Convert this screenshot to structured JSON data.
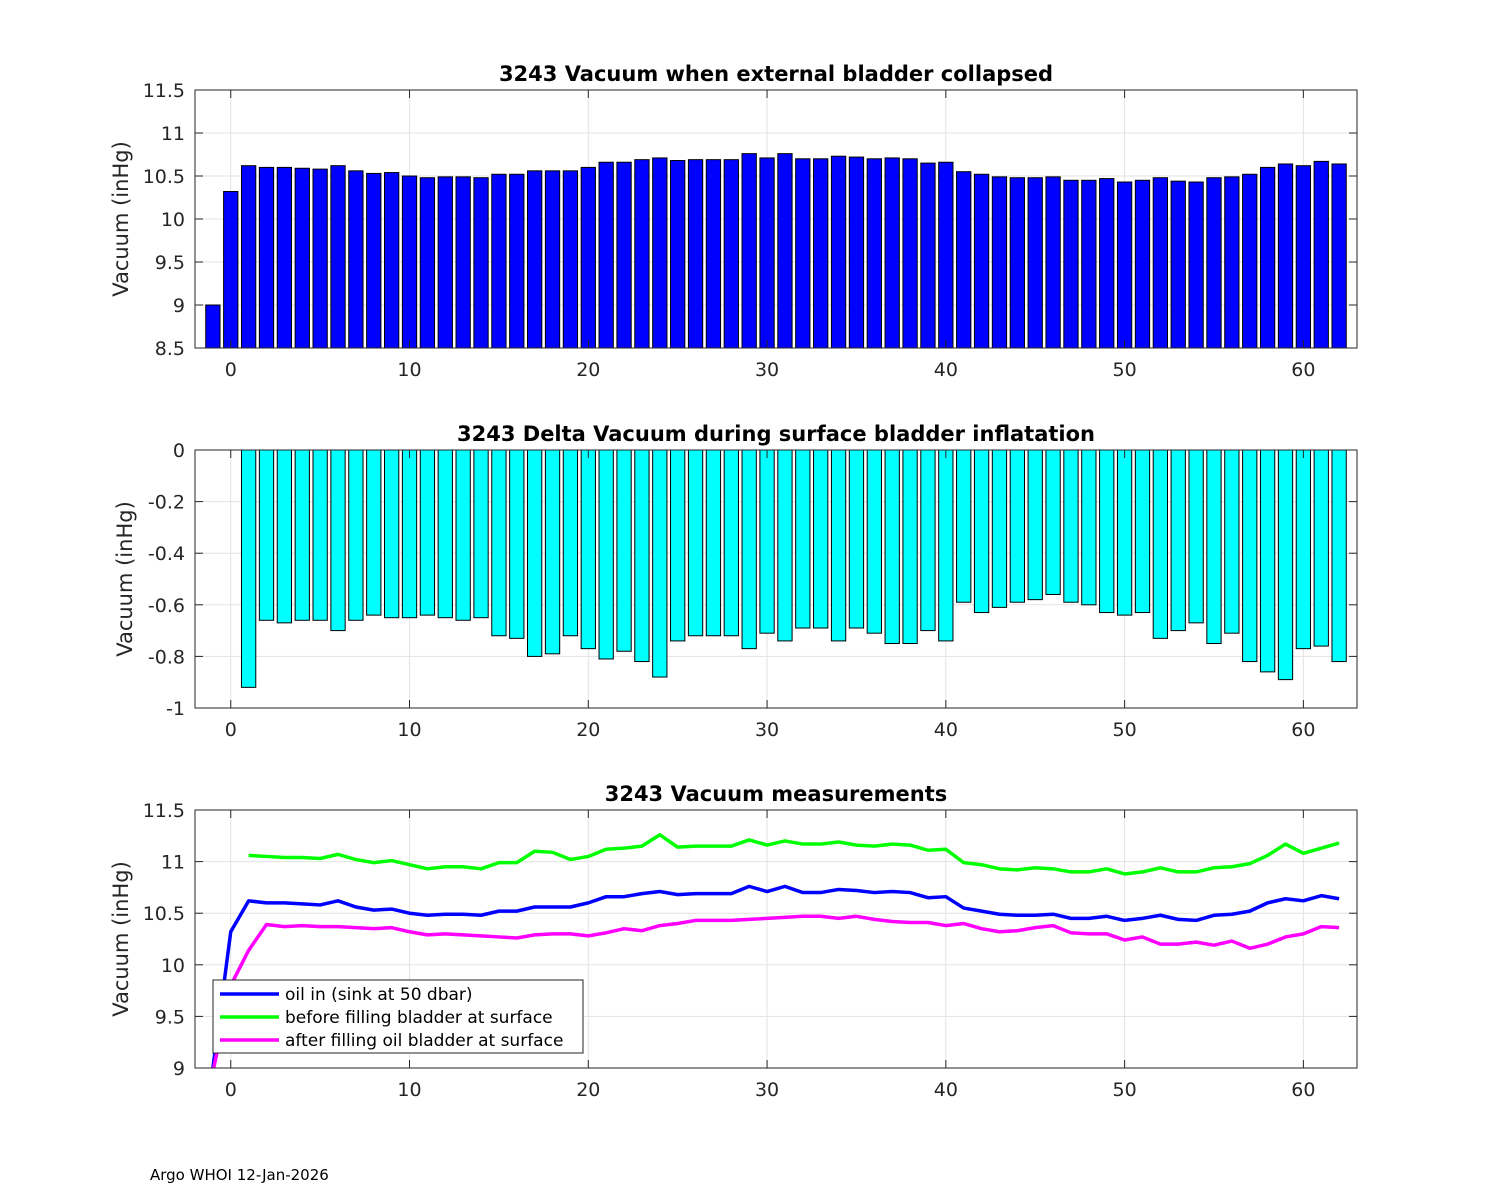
{
  "footer": "Argo WHOI 12-Jan-2026",
  "colors": {
    "bar_top": "#0000ff",
    "bar_mid": "#00ffff",
    "line_oil_in": "#0000ff",
    "line_before": "#00ff00",
    "line_after": "#ff00ff",
    "grid": "#e3e3e3"
  },
  "chart_data": [
    {
      "type": "bar",
      "title": "3243 Vacuum when external bladder collapsed",
      "xlabel": "",
      "ylabel": "Vacuum (inHg)",
      "xlim": [
        -2,
        63
      ],
      "ylim": [
        8.5,
        11.5
      ],
      "xticks": [
        0,
        10,
        20,
        30,
        40,
        50,
        60
      ],
      "yticks": [
        8.5,
        9,
        9.5,
        10,
        10.5,
        11,
        11.5
      ],
      "ytick_labels": [
        "8.5",
        "9",
        "9.5",
        "10",
        "10.5",
        "11",
        "11.5"
      ],
      "x": [
        -1,
        0,
        1,
        2,
        3,
        4,
        5,
        6,
        7,
        8,
        9,
        10,
        11,
        12,
        13,
        14,
        15,
        16,
        17,
        18,
        19,
        20,
        21,
        22,
        23,
        24,
        25,
        26,
        27,
        28,
        29,
        30,
        31,
        32,
        33,
        34,
        35,
        36,
        37,
        38,
        39,
        40,
        41,
        42,
        43,
        44,
        45,
        46,
        47,
        48,
        49,
        50,
        51,
        52,
        53,
        54,
        55,
        56,
        57,
        58,
        59,
        60,
        61,
        62
      ],
      "values": [
        9.0,
        10.32,
        10.62,
        10.6,
        10.6,
        10.59,
        10.58,
        10.62,
        10.56,
        10.53,
        10.54,
        10.5,
        10.48,
        10.49,
        10.49,
        10.48,
        10.52,
        10.52,
        10.56,
        10.56,
        10.56,
        10.6,
        10.66,
        10.66,
        10.69,
        10.71,
        10.68,
        10.69,
        10.69,
        10.69,
        10.76,
        10.71,
        10.76,
        10.7,
        10.7,
        10.73,
        10.72,
        10.7,
        10.71,
        10.7,
        10.65,
        10.66,
        10.55,
        10.52,
        10.49,
        10.48,
        10.48,
        10.49,
        10.45,
        10.45,
        10.47,
        10.43,
        10.45,
        10.48,
        10.44,
        10.43,
        10.48,
        10.49,
        10.52,
        10.6,
        10.64,
        10.62,
        10.67,
        10.64
      ]
    },
    {
      "type": "bar",
      "title": "3243 Delta Vacuum during surface bladder inflatation",
      "xlabel": "",
      "ylabel": "Vacuum (inHg)",
      "xlim": [
        -2,
        63
      ],
      "ylim": [
        -1,
        0
      ],
      "xticks": [
        0,
        10,
        20,
        30,
        40,
        50,
        60
      ],
      "yticks": [
        -1,
        -0.8,
        -0.6,
        -0.4,
        -0.2,
        0
      ],
      "ytick_labels": [
        "-1",
        "-0.8",
        "-0.6",
        "-0.4",
        "-0.2",
        "0"
      ],
      "x": [
        1,
        2,
        3,
        4,
        5,
        6,
        7,
        8,
        9,
        10,
        11,
        12,
        13,
        14,
        15,
        16,
        17,
        18,
        19,
        20,
        21,
        22,
        23,
        24,
        25,
        26,
        27,
        28,
        29,
        30,
        31,
        32,
        33,
        34,
        35,
        36,
        37,
        38,
        39,
        40,
        41,
        42,
        43,
        44,
        45,
        46,
        47,
        48,
        49,
        50,
        51,
        52,
        53,
        54,
        55,
        56,
        57,
        58,
        59,
        60,
        61,
        62
      ],
      "values": [
        -0.92,
        -0.66,
        -0.67,
        -0.66,
        -0.66,
        -0.7,
        -0.66,
        -0.64,
        -0.65,
        -0.65,
        -0.64,
        -0.65,
        -0.66,
        -0.65,
        -0.72,
        -0.73,
        -0.8,
        -0.79,
        -0.72,
        -0.77,
        -0.81,
        -0.78,
        -0.82,
        -0.88,
        -0.74,
        -0.72,
        -0.72,
        -0.72,
        -0.77,
        -0.71,
        -0.74,
        -0.69,
        -0.69,
        -0.74,
        -0.69,
        -0.71,
        -0.75,
        -0.75,
        -0.7,
        -0.74,
        -0.59,
        -0.63,
        -0.61,
        -0.59,
        -0.58,
        -0.56,
        -0.59,
        -0.6,
        -0.63,
        -0.64,
        -0.63,
        -0.73,
        -0.7,
        -0.67,
        -0.75,
        -0.71,
        -0.82,
        -0.86,
        -0.89,
        -0.77,
        -0.76,
        -0.82
      ]
    },
    {
      "type": "line",
      "title": "3243 Vacuum measurements",
      "xlabel": "",
      "ylabel": "Vacuum (inHg)",
      "xlim": [
        -2,
        63
      ],
      "ylim": [
        9,
        11.5
      ],
      "xticks": [
        0,
        10,
        20,
        30,
        40,
        50,
        60
      ],
      "yticks": [
        9,
        9.5,
        10,
        10.5,
        11,
        11.5
      ],
      "ytick_labels": [
        "9",
        "9.5",
        "10",
        "10.5",
        "11",
        "11.5"
      ],
      "legend_position": "bottom-left",
      "series": [
        {
          "name": "oil in (sink at 50 dbar)",
          "color": "#0000ff",
          "x": [
            -1,
            0,
            1,
            2,
            3,
            4,
            5,
            6,
            7,
            8,
            9,
            10,
            11,
            12,
            13,
            14,
            15,
            16,
            17,
            18,
            19,
            20,
            21,
            22,
            23,
            24,
            25,
            26,
            27,
            28,
            29,
            30,
            31,
            32,
            33,
            34,
            35,
            36,
            37,
            38,
            39,
            40,
            41,
            42,
            43,
            44,
            45,
            46,
            47,
            48,
            49,
            50,
            51,
            52,
            53,
            54,
            55,
            56,
            57,
            58,
            59,
            60,
            61,
            62
          ],
          "values": [
            9.0,
            10.32,
            10.62,
            10.6,
            10.6,
            10.59,
            10.58,
            10.62,
            10.56,
            10.53,
            10.54,
            10.5,
            10.48,
            10.49,
            10.49,
            10.48,
            10.52,
            10.52,
            10.56,
            10.56,
            10.56,
            10.6,
            10.66,
            10.66,
            10.69,
            10.71,
            10.68,
            10.69,
            10.69,
            10.69,
            10.76,
            10.71,
            10.76,
            10.7,
            10.7,
            10.73,
            10.72,
            10.7,
            10.71,
            10.7,
            10.65,
            10.66,
            10.55,
            10.52,
            10.49,
            10.48,
            10.48,
            10.49,
            10.45,
            10.45,
            10.47,
            10.43,
            10.45,
            10.48,
            10.44,
            10.43,
            10.48,
            10.49,
            10.52,
            10.6,
            10.64,
            10.62,
            10.67,
            10.64
          ]
        },
        {
          "name": "before filling bladder at surface",
          "color": "#00ff00",
          "x": [
            1,
            2,
            3,
            4,
            5,
            6,
            7,
            8,
            9,
            10,
            11,
            12,
            13,
            14,
            15,
            16,
            17,
            18,
            19,
            20,
            21,
            22,
            23,
            24,
            25,
            26,
            27,
            28,
            29,
            30,
            31,
            32,
            33,
            34,
            35,
            36,
            37,
            38,
            39,
            40,
            41,
            42,
            43,
            44,
            45,
            46,
            47,
            48,
            49,
            50,
            51,
            52,
            53,
            54,
            55,
            56,
            57,
            58,
            59,
            60,
            61,
            62
          ],
          "values": [
            11.06,
            11.05,
            11.04,
            11.04,
            11.03,
            11.07,
            11.02,
            10.99,
            11.01,
            10.97,
            10.93,
            10.95,
            10.95,
            10.93,
            10.99,
            10.99,
            11.1,
            11.09,
            11.02,
            11.05,
            11.12,
            11.13,
            11.15,
            11.26,
            11.14,
            11.15,
            11.15,
            11.15,
            11.21,
            11.16,
            11.2,
            11.17,
            11.17,
            11.19,
            11.16,
            11.15,
            11.17,
            11.16,
            11.11,
            11.12,
            10.99,
            10.97,
            10.93,
            10.92,
            10.94,
            10.93,
            10.9,
            10.9,
            10.93,
            10.88,
            10.9,
            10.94,
            10.9,
            10.9,
            10.94,
            10.95,
            10.98,
            11.06,
            11.17,
            11.08,
            11.13,
            11.18
          ]
        },
        {
          "name": "after filling oil bladder at surface",
          "color": "#ff00ff",
          "x": [
            -1,
            0,
            1,
            2,
            3,
            4,
            5,
            6,
            7,
            8,
            9,
            10,
            11,
            12,
            13,
            14,
            15,
            16,
            17,
            18,
            19,
            20,
            21,
            22,
            23,
            24,
            25,
            26,
            27,
            28,
            29,
            30,
            31,
            32,
            33,
            34,
            35,
            36,
            37,
            38,
            39,
            40,
            41,
            42,
            43,
            44,
            45,
            46,
            47,
            48,
            49,
            50,
            51,
            52,
            53,
            54,
            55,
            56,
            57,
            58,
            59,
            60,
            61,
            62
          ],
          "values": [
            8.96,
            9.8,
            10.14,
            10.39,
            10.37,
            10.38,
            10.37,
            10.37,
            10.36,
            10.35,
            10.36,
            10.32,
            10.29,
            10.3,
            10.29,
            10.28,
            10.27,
            10.26,
            10.29,
            10.3,
            10.3,
            10.28,
            10.31,
            10.35,
            10.33,
            10.38,
            10.4,
            10.43,
            10.43,
            10.43,
            10.44,
            10.45,
            10.46,
            10.47,
            10.47,
            10.45,
            10.47,
            10.44,
            10.42,
            10.41,
            10.41,
            10.38,
            10.4,
            10.35,
            10.32,
            10.33,
            10.36,
            10.38,
            10.31,
            10.3,
            10.3,
            10.24,
            10.27,
            10.2,
            10.2,
            10.22,
            10.19,
            10.23,
            10.16,
            10.2,
            10.27,
            10.3,
            10.37,
            10.36
          ]
        }
      ]
    }
  ]
}
